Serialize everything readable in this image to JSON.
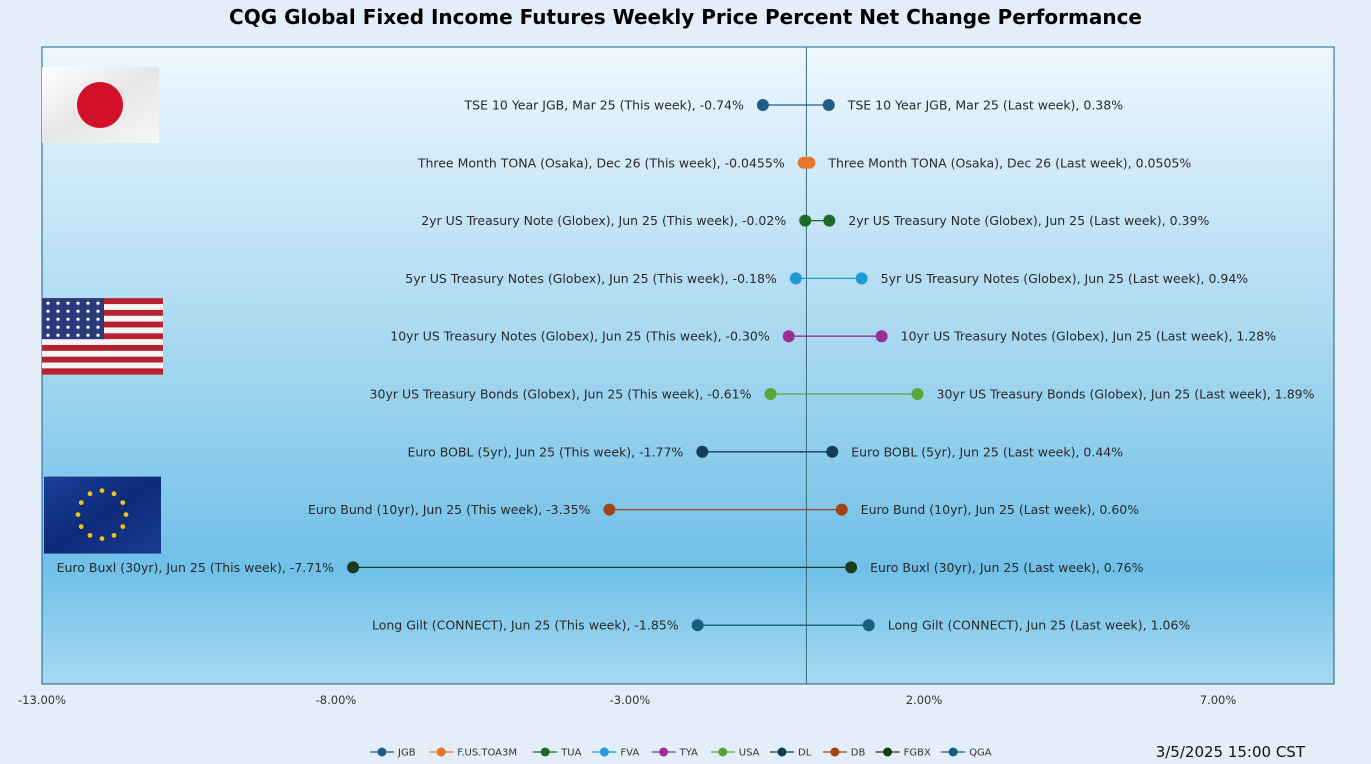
{
  "chart_data": {
    "type": "dumbbell",
    "title": "CQG Global Fixed Income Futures Weekly Price Percent Net Change Performance",
    "timestamp": "3/5/2025 15:00 CST",
    "xlim": [
      -13,
      9
    ],
    "x_ticks": [
      -13,
      -8,
      -3,
      2,
      7
    ],
    "x_tick_labels": [
      "-13.00%",
      "-8.00%",
      "-3.00%",
      "2.00%",
      "7.00%"
    ],
    "rows": [
      {
        "code": "JGB",
        "color": "#1f5f86",
        "this_week": -0.74,
        "last_week": 0.38,
        "label_this": "TSE 10 Year JGB, Mar 25 (This week), -0.74%",
        "label_last": "TSE 10 Year JGB, Mar 25 (Last week), 0.38%"
      },
      {
        "code": "F.US.TOA3M",
        "color": "#e8752f",
        "this_week": -0.0455,
        "last_week": 0.0505,
        "label_this": "Three Month TONA (Osaka), Dec 26 (This week), -0.0455%",
        "label_last": "Three Month TONA (Osaka), Dec 26 (Last week), 0.0505%"
      },
      {
        "code": "TUA",
        "color": "#1c6b2c",
        "this_week": -0.02,
        "last_week": 0.39,
        "label_this": "2yr US Treasury Note (Globex), Jun 25 (This week), -0.02%",
        "label_last": "2yr US Treasury Note (Globex), Jun 25 (Last week), 0.39%"
      },
      {
        "code": "FVA",
        "color": "#1e9bd3",
        "this_week": -0.18,
        "last_week": 0.94,
        "label_this": "5yr US Treasury Notes (Globex), Jun 25 (This week), -0.18%",
        "label_last": "5yr US Treasury Notes (Globex), Jun 25 (Last week), 0.94%"
      },
      {
        "code": "TYA",
        "color": "#9b2e96",
        "this_week": -0.3,
        "last_week": 1.28,
        "label_this": "10yr US Treasury Notes (Globex), Jun 25 (This week), -0.30%",
        "label_last": "10yr US Treasury Notes (Globex), Jun 25 (Last week), 1.28%"
      },
      {
        "code": "USA",
        "color": "#55a83a",
        "this_week": -0.61,
        "last_week": 1.89,
        "label_this": "30yr US Treasury Bonds (Globex), Jun 25 (This week), -0.61%",
        "label_last": "30yr US Treasury Bonds (Globex), Jun 25 (Last week), 1.89%"
      },
      {
        "code": "DL",
        "color": "#143d52",
        "this_week": -1.77,
        "last_week": 0.44,
        "label_this": "Euro BOBL (5yr), Jun 25 (This week), -1.77%",
        "label_last": "Euro BOBL (5yr), Jun 25 (Last week), 0.44%"
      },
      {
        "code": "DB",
        "color": "#a0451b",
        "this_week": -3.35,
        "last_week": 0.6,
        "label_this": "Euro Bund (10yr), Jun 25 (This week), -3.35%",
        "label_last": "Euro Bund (10yr), Jun 25 (Last week), 0.60%"
      },
      {
        "code": "FGBX",
        "color": "#183d1c",
        "this_week": -7.71,
        "last_week": 0.76,
        "label_this": "Euro Buxl (30yr), Jun 25 (This week), -7.71%",
        "label_last": "Euro Buxl (30yr), Jun 25 (Last week), 0.76%"
      },
      {
        "code": "QGA",
        "color": "#16607e",
        "this_week": -1.85,
        "last_week": 1.06,
        "label_this": "Long Gilt (CONNECT), Jun 25 (This week), -1.85%",
        "label_last": "Long Gilt (CONNECT), Jun 25 (Last week), 1.06%"
      }
    ],
    "legend": [
      "JGB",
      "F.US.TOA3M",
      "TUA",
      "FVA",
      "TYA",
      "USA",
      "DL",
      "DB",
      "FGBX",
      "QGA"
    ],
    "flags": [
      {
        "country": "japan",
        "row": 0
      },
      {
        "country": "usa",
        "row": 4
      },
      {
        "country": "eu",
        "row": 7
      }
    ]
  }
}
